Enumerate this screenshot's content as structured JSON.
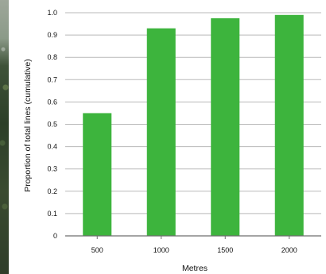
{
  "chart_data": {
    "type": "bar",
    "categories": [
      "500",
      "1000",
      "1500",
      "2000"
    ],
    "values": [
      0.55,
      0.93,
      0.975,
      0.99
    ],
    "xlabel": "Metres",
    "ylabel": "Proportion of total lines (cumulative)",
    "ylim": [
      0,
      1.0
    ],
    "yticks": [
      "0",
      "0.1",
      "0.2",
      "0.3",
      "0.4",
      "0.5",
      "0.6",
      "0.7",
      "0.8",
      "0.9",
      "1.0"
    ],
    "grid": "horizontal",
    "colors": {
      "bar": "#3db43d",
      "grid": "#b9b9b9",
      "axis": "#6e6e6e"
    }
  }
}
